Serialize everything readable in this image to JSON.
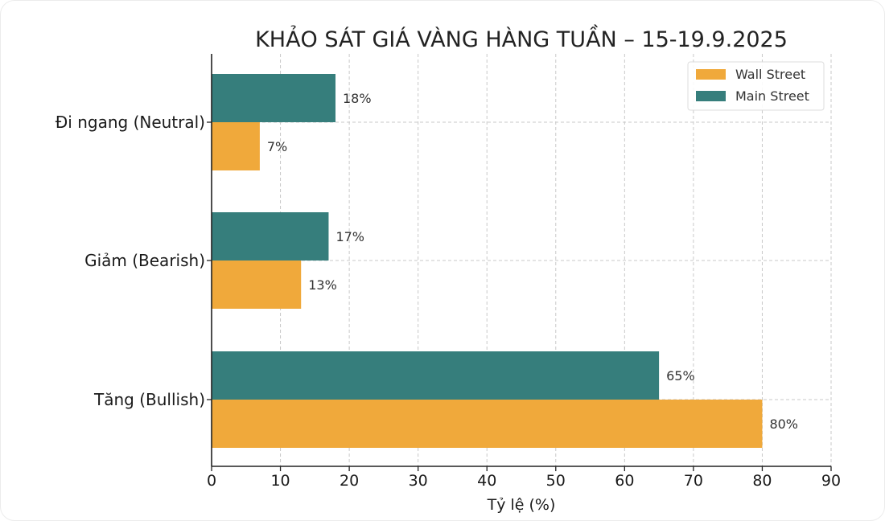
{
  "chart_data": {
    "type": "bar",
    "orientation": "horizontal",
    "title": "KHẢO SÁT GIÁ VÀNG HÀNG TUẦN – 15-19.9.2025",
    "xlabel": "Tỷ lệ (%)",
    "ylabel": "",
    "categories": [
      "Tăng (Bullish)",
      "Giảm (Bearish)",
      "Đi ngang (Neutral)"
    ],
    "series": [
      {
        "name": "Wall Street",
        "color": "#F0A93B",
        "values": [
          80,
          13,
          7
        ],
        "labels": [
          "80%",
          "13%",
          "7%"
        ]
      },
      {
        "name": "Main Street",
        "color": "#367E7C",
        "values": [
          65,
          17,
          18
        ],
        "labels": [
          "65%",
          "17%",
          "18%"
        ]
      }
    ],
    "xlim": [
      0,
      90
    ],
    "xticks": [
      0,
      10,
      20,
      30,
      40,
      50,
      60,
      70,
      80,
      90
    ],
    "xtick_labels": [
      "0",
      "10",
      "20",
      "30",
      "40",
      "50",
      "60",
      "70",
      "80",
      "90"
    ],
    "grid": true,
    "legend_position": "top-right"
  }
}
